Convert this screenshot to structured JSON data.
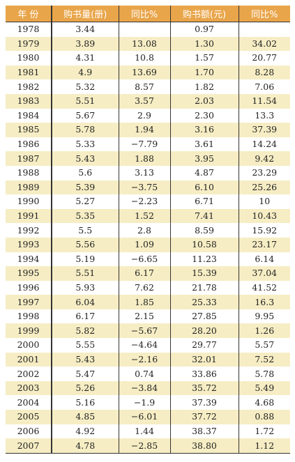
{
  "headers": [
    "年 份",
    "购书量(册)",
    "同比%",
    "购书额(元)",
    "同比%"
  ],
  "rows": [
    [
      "1978",
      "3.44",
      "",
      "0.97",
      ""
    ],
    [
      "1979",
      "3.89",
      "13.08",
      "1.30",
      "34.02"
    ],
    [
      "1980",
      "4.31",
      "10.8",
      "1.57",
      "20.77"
    ],
    [
      "1981",
      "4.9",
      "13.69",
      "1.70",
      "8.28"
    ],
    [
      "1982",
      "5.32",
      "8.57",
      "1.82",
      "7.06"
    ],
    [
      "1983",
      "5.51",
      "3.57",
      "2.03",
      "11.54"
    ],
    [
      "1984",
      "5.67",
      "2.9",
      "2.30",
      "13.3"
    ],
    [
      "1985",
      "5.78",
      "1.94",
      "3.16",
      "37.39"
    ],
    [
      "1986",
      "5.33",
      "−7.79",
      "3.61",
      "14.24"
    ],
    [
      "1987",
      "5.43",
      "1.88",
      "3.95",
      "9.42"
    ],
    [
      "1988",
      "5.6",
      "3.13",
      "4.87",
      "23.29"
    ],
    [
      "1989",
      "5.39",
      "−3.75",
      "6.10",
      "25.26"
    ],
    [
      "1990",
      "5.27",
      "−2.23",
      "6.71",
      "10"
    ],
    [
      "1991",
      "5.35",
      "1.52",
      "7.41",
      "10.43"
    ],
    [
      "1992",
      "5.5",
      "2.8",
      "8.59",
      "15.92"
    ],
    [
      "1993",
      "5.56",
      "1.09",
      "10.58",
      "23.17"
    ],
    [
      "1994",
      "5.19",
      "−6.65",
      "11.23",
      "6.14"
    ],
    [
      "1995",
      "5.51",
      "6.17",
      "15.39",
      "37.04"
    ],
    [
      "1996",
      "5.93",
      "7.62",
      "21.78",
      "41.52"
    ],
    [
      "1997",
      "6.04",
      "1.85",
      "25.33",
      "16.3"
    ],
    [
      "1998",
      "6.17",
      "2.15",
      "27.85",
      "9.95"
    ],
    [
      "1999",
      "5.82",
      "−5.67",
      "28.20",
      "1.26"
    ],
    [
      "2000",
      "5.55",
      "−4.64",
      "29.77",
      "5.57"
    ],
    [
      "2001",
      "5.43",
      "−2.16",
      "32.01",
      "7.52"
    ],
    [
      "2002",
      "5.47",
      "0.74",
      "33.86",
      "5.78"
    ],
    [
      "2003",
      "5.26",
      "−3.84",
      "35.72",
      "5.49"
    ],
    [
      "2004",
      "5.16",
      "−1.9",
      "37.39",
      "4.68"
    ],
    [
      "2005",
      "4.85",
      "−6.01",
      "37.72",
      "0.88"
    ],
    [
      "2006",
      "4.92",
      "1.44",
      "38.37",
      "1.72"
    ],
    [
      "2007",
      "4.78",
      "−2.85",
      "38.80",
      "1.12"
    ]
  ],
  "colors": {
    "header_bg": "#e9a54a",
    "stripe_bg": "#f6edc4",
    "row_bg": "#ffffff"
  }
}
